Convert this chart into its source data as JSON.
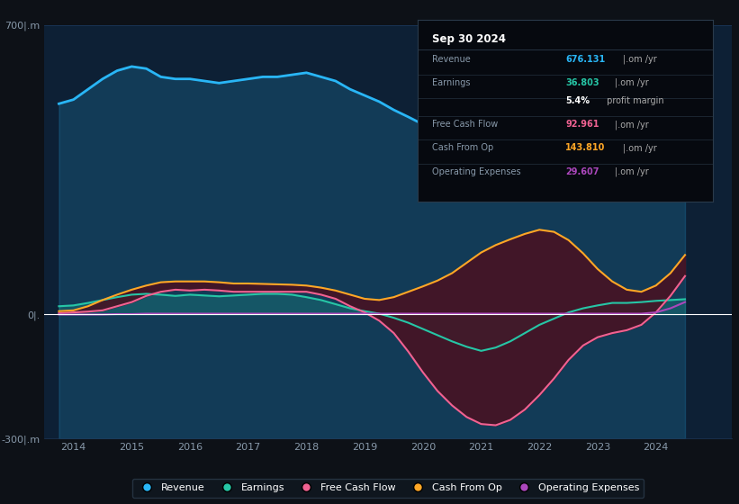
{
  "bg_color": "#0d1117",
  "plot_bg_color": "#0d2035",
  "years": [
    2013.75,
    2014.0,
    2014.25,
    2014.5,
    2014.75,
    2015.0,
    2015.25,
    2015.5,
    2015.75,
    2016.0,
    2016.25,
    2016.5,
    2016.75,
    2017.0,
    2017.25,
    2017.5,
    2017.75,
    2018.0,
    2018.25,
    2018.5,
    2018.75,
    2019.0,
    2019.25,
    2019.5,
    2019.75,
    2020.0,
    2020.25,
    2020.5,
    2020.75,
    2021.0,
    2021.25,
    2021.5,
    2021.75,
    2022.0,
    2022.25,
    2022.5,
    2022.75,
    2023.0,
    2023.25,
    2023.5,
    2023.75,
    2024.0,
    2024.25,
    2024.5
  ],
  "revenue": [
    510,
    520,
    545,
    570,
    590,
    600,
    595,
    575,
    570,
    570,
    565,
    560,
    565,
    570,
    575,
    575,
    580,
    585,
    575,
    565,
    545,
    530,
    515,
    495,
    478,
    460,
    455,
    450,
    430,
    400,
    410,
    430,
    455,
    480,
    510,
    540,
    565,
    585,
    600,
    615,
    635,
    655,
    665,
    676
  ],
  "earnings": [
    20,
    22,
    28,
    35,
    42,
    48,
    50,
    48,
    45,
    48,
    46,
    44,
    46,
    48,
    50,
    50,
    48,
    42,
    35,
    25,
    15,
    8,
    2,
    -8,
    -20,
    -35,
    -50,
    -65,
    -78,
    -88,
    -80,
    -65,
    -45,
    -25,
    -10,
    5,
    15,
    22,
    28,
    28,
    30,
    33,
    35,
    37
  ],
  "free_cash_flow": [
    3,
    5,
    7,
    10,
    20,
    30,
    45,
    55,
    60,
    58,
    60,
    58,
    55,
    55,
    55,
    55,
    55,
    55,
    48,
    38,
    20,
    5,
    -15,
    -45,
    -90,
    -140,
    -185,
    -220,
    -248,
    -265,
    -268,
    -255,
    -230,
    -195,
    -155,
    -110,
    -75,
    -55,
    -45,
    -38,
    -25,
    5,
    45,
    93
  ],
  "cash_from_op": [
    8,
    10,
    20,
    35,
    48,
    60,
    70,
    78,
    80,
    80,
    80,
    78,
    75,
    75,
    74,
    73,
    72,
    70,
    65,
    58,
    48,
    38,
    35,
    42,
    55,
    68,
    82,
    100,
    125,
    150,
    168,
    182,
    195,
    205,
    200,
    180,
    148,
    110,
    80,
    60,
    55,
    70,
    100,
    144
  ],
  "operating_expenses": [
    0,
    0,
    0,
    0,
    1,
    1,
    2,
    2,
    2,
    2,
    2,
    2,
    2,
    2,
    2,
    2,
    2,
    2,
    2,
    2,
    2,
    2,
    2,
    2,
    2,
    2,
    2,
    2,
    2,
    2,
    2,
    2,
    2,
    2,
    2,
    2,
    2,
    2,
    2,
    2,
    2,
    5,
    15,
    30
  ],
  "ylim": [
    -300,
    700
  ],
  "xlim": [
    2013.5,
    2025.3
  ],
  "xticks": [
    2014,
    2015,
    2016,
    2017,
    2018,
    2019,
    2020,
    2021,
    2022,
    2023,
    2024
  ],
  "revenue_color": "#29b6f6",
  "earnings_color": "#26c6a6",
  "free_cash_flow_color": "#f06292",
  "cash_from_op_color": "#ffa726",
  "operating_expenses_color": "#ab47bc",
  "fill_between_color": "#4a1020",
  "grid_color": "#1e3a5f",
  "zero_line_color": "#ffffff",
  "info_box": {
    "title": "Sep 30 2024",
    "rows": [
      {
        "label": "Revenue",
        "value": "676.131|.om /yr",
        "color": "#29b6f6"
      },
      {
        "label": "Earnings",
        "value": "36.803|.om /yr",
        "color": "#26c6a6"
      },
      {
        "label": "",
        "value": "5.4% profit margin",
        "color": "#ffffff"
      },
      {
        "label": "Free Cash Flow",
        "value": "92.961|.om /yr",
        "color": "#f06292"
      },
      {
        "label": "Cash From Op",
        "value": "143.810|.om /yr",
        "color": "#ffa726"
      },
      {
        "label": "Operating Expenses",
        "value": "29.607|.om /yr",
        "color": "#ab47bc"
      }
    ]
  },
  "legend_items": [
    {
      "label": "Revenue",
      "color": "#29b6f6"
    },
    {
      "label": "Earnings",
      "color": "#26c6a6"
    },
    {
      "label": "Free Cash Flow",
      "color": "#f06292"
    },
    {
      "label": "Cash From Op",
      "color": "#ffa726"
    },
    {
      "label": "Operating Expenses",
      "color": "#ab47bc"
    }
  ]
}
